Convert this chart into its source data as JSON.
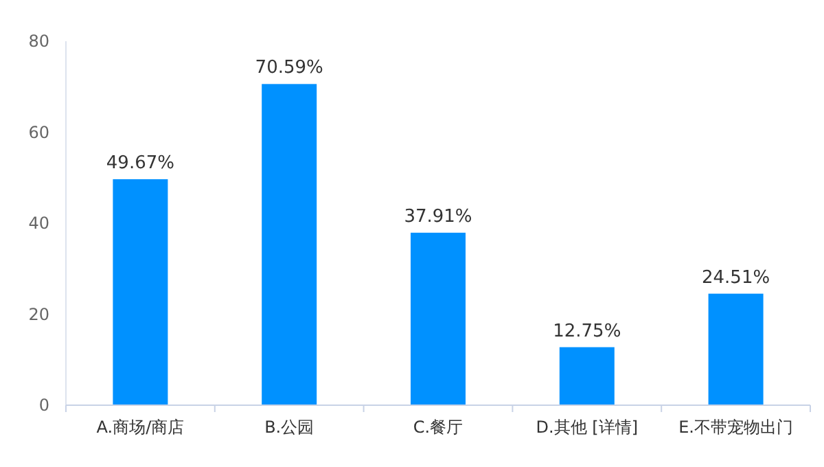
{
  "chart_data": {
    "type": "bar",
    "categories": [
      "A.商场/商店",
      "B.公园",
      "C.餐厅",
      "D.其他 [详情]",
      "E.不带宠物出门"
    ],
    "values": [
      49.67,
      70.59,
      37.91,
      12.75,
      24.51
    ],
    "value_labels": [
      "49.67%",
      "70.59%",
      "37.91%",
      "12.75%",
      "24.51%"
    ],
    "color": "#0091ff",
    "ylim": [
      0,
      80
    ],
    "yticks": [
      0,
      20,
      40,
      60,
      80
    ],
    "grid": false
  }
}
